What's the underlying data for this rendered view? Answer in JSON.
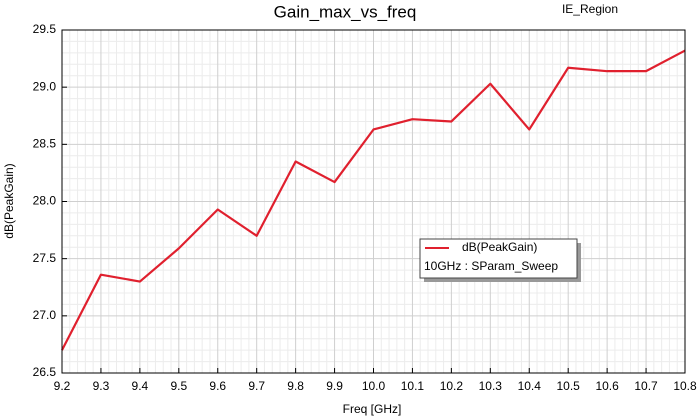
{
  "chart_data": {
    "type": "line",
    "title": "Gain_max_vs_freq",
    "subtitle": "IE_Region",
    "x_label": "Freq [GHz]",
    "y_label": "dB(PeakGain)",
    "x": [
      9.2,
      9.3,
      9.4,
      9.5,
      9.6,
      9.7,
      9.8,
      9.9,
      10.0,
      10.1,
      10.2,
      10.3,
      10.4,
      10.5,
      10.6,
      10.7,
      10.8
    ],
    "series": [
      {
        "name": "dB(PeakGain)",
        "sweep": "10GHz : SParam_Sweep",
        "color": "#e0202e",
        "values": [
          26.7,
          27.36,
          27.3,
          27.59,
          27.93,
          27.7,
          28.35,
          28.17,
          28.63,
          28.72,
          28.7,
          29.03,
          28.63,
          29.17,
          29.14,
          29.14,
          29.32
        ]
      }
    ],
    "xlim": [
      9.2,
      10.8
    ],
    "xticks": [
      9.2,
      9.3,
      9.4,
      9.5,
      9.6,
      9.7,
      9.8,
      9.9,
      {
        "value": 10,
        "label": "10.0"
      },
      10.1,
      10.2,
      10.3,
      10.4,
      10.5,
      10.6,
      10.7,
      10.8
    ],
    "ylim": [
      26.5,
      29.5
    ],
    "yticks": [
      26.5,
      {
        "value": 27,
        "label": "27.0"
      },
      27.5,
      {
        "value": 28,
        "label": "28.0"
      },
      28.5,
      {
        "value": 29,
        "label": "29.0"
      },
      29.5
    ],
    "grid": true
  }
}
